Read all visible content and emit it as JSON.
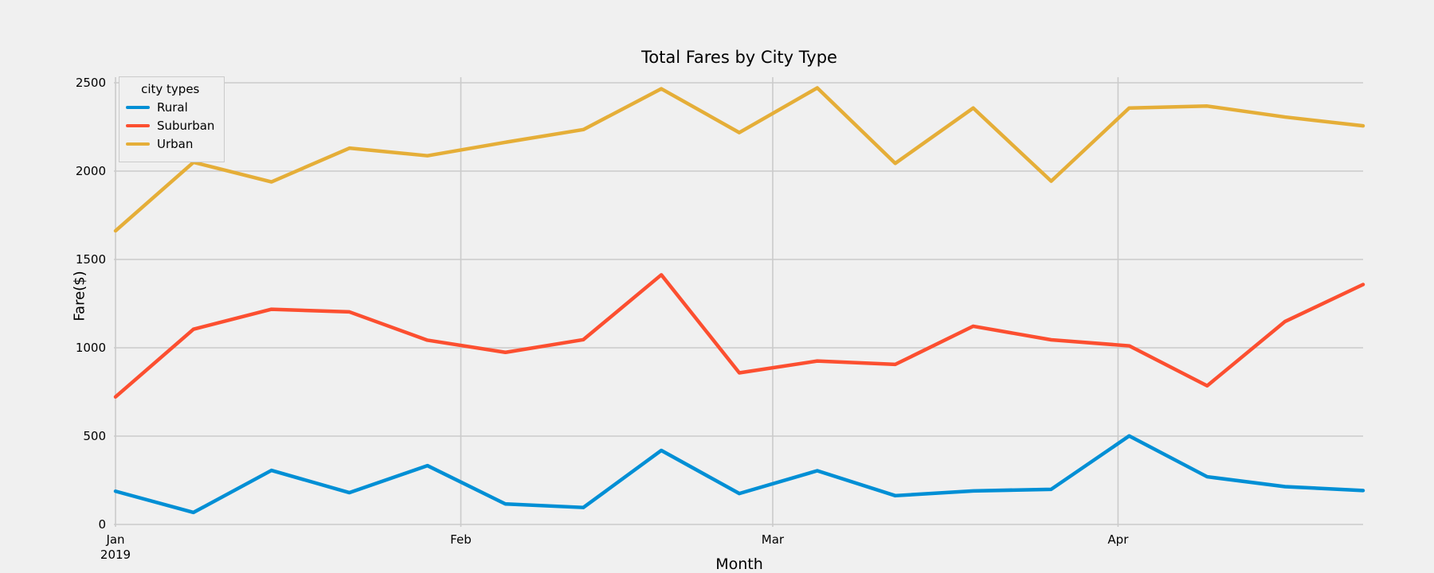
{
  "chart_data": {
    "type": "line",
    "title": "Total Fares by City Type",
    "xlabel": "Month",
    "ylabel": "Fare($)",
    "legend_title": "city types",
    "legend_position": "upper left",
    "grid": true,
    "background_color": "#f0f0f0",
    "grid_color": "#cbcbcb",
    "text_color": "#000000",
    "ylim": [
      0,
      2500
    ],
    "yticks": [
      0,
      500,
      1000,
      1500,
      2000,
      2500
    ],
    "xticks": [
      {
        "day": 0,
        "label": "Jan",
        "sublabel": "2019"
      },
      {
        "day": 31,
        "label": "Feb"
      },
      {
        "day": 59,
        "label": "Mar"
      },
      {
        "day": 90,
        "label": "Apr"
      }
    ],
    "x_days": [
      0,
      7,
      14,
      21,
      28,
      35,
      42,
      49,
      56,
      63,
      70,
      77,
      84,
      91,
      98,
      105,
      112
    ],
    "series": [
      {
        "name": "Rural",
        "color": "#008fd5",
        "values": [
          188,
          68,
          306,
          180,
          333,
          116,
          96,
          419,
          175,
          304,
          163,
          190,
          199,
          501,
          270,
          214,
          192
        ]
      },
      {
        "name": "Suburban",
        "color": "#fc4f30",
        "values": [
          722,
          1105,
          1218,
          1203,
          1043,
          974,
          1046,
          1413,
          858,
          925,
          906,
          1122,
          1045,
          1011,
          785,
          1149,
          1358
        ]
      },
      {
        "name": "Urban",
        "color": "#e5ae38",
        "values": [
          1662,
          2050,
          1939,
          2130,
          2087,
          2163,
          2235,
          2466,
          2218,
          2471,
          2044,
          2357,
          1943,
          2357,
          2368,
          2306,
          2256
        ]
      }
    ]
  }
}
